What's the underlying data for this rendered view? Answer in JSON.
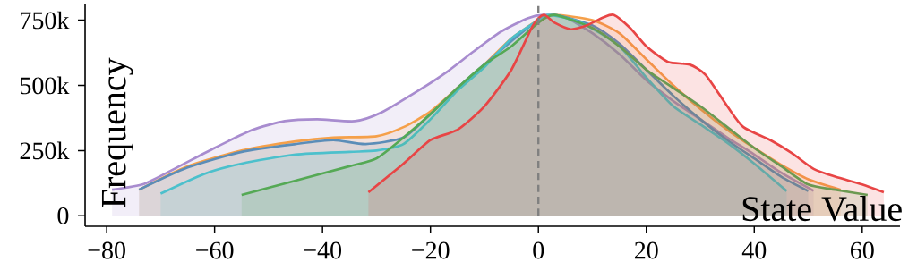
{
  "chart_data": {
    "type": "area",
    "xlabel": "State Value",
    "ylabel": "Frequency",
    "xlim": [
      -84,
      67
    ],
    "ylim": [
      -40000,
      810000
    ],
    "xticks": [
      {
        "value": -80,
        "label": "−80"
      },
      {
        "value": -60,
        "label": "−60"
      },
      {
        "value": -40,
        "label": "−40"
      },
      {
        "value": -20,
        "label": "−20"
      },
      0,
      20,
      40,
      60
    ],
    "yticks": [
      0,
      {
        "value": 250000,
        "label": "250k"
      },
      {
        "value": 500000,
        "label": "500k"
      },
      {
        "value": 750000,
        "label": "750k"
      }
    ],
    "ref_lines": [
      {
        "axis": "x",
        "value": 0,
        "color": "#808080",
        "line_style": "dashed"
      }
    ],
    "series": [
      {
        "color": "#a88ccf",
        "x": [
          -79,
          -73,
          -67,
          -60,
          -53,
          -47,
          -41,
          -34,
          -29,
          -22,
          -17,
          -12,
          -7,
          -2,
          1,
          5,
          10,
          15,
          20,
          25,
          30,
          35,
          40,
          45,
          51
        ],
        "values": [
          100000,
          123000,
          185000,
          260000,
          329000,
          363000,
          370000,
          363000,
          397000,
          483000,
          551000,
          630000,
          705000,
          757000,
          770000,
          760000,
          700000,
          620000,
          520000,
          440000,
          370000,
          300000,
          235000,
          165000,
          96000
        ]
      },
      {
        "color": "#f5a04a",
        "x": [
          -74,
          -65,
          -55,
          -45,
          -38,
          -30,
          -25,
          -20,
          -15,
          -10,
          -5,
          0,
          3,
          10,
          15,
          20,
          25,
          30,
          35,
          40,
          45,
          50,
          56
        ],
        "values": [
          100000,
          190000,
          250000,
          285000,
          300000,
          305000,
          340000,
          400000,
          490000,
          580000,
          680000,
          750000,
          770000,
          750000,
          700000,
          600000,
          500000,
          410000,
          330000,
          260000,
          195000,
          140000,
          100000
        ]
      },
      {
        "color": "#5b8db8",
        "x": [
          -74,
          -65,
          -55,
          -45,
          -38,
          -32,
          -25,
          -20,
          -15,
          -10,
          -5,
          0,
          3,
          10,
          15,
          20,
          25,
          30,
          35,
          40,
          45,
          50
        ],
        "values": [
          100000,
          185000,
          245000,
          275000,
          290000,
          275000,
          300000,
          390000,
          490000,
          580000,
          670000,
          750000,
          770000,
          730000,
          660000,
          560000,
          460000,
          370000,
          290000,
          220000,
          150000,
          95000
        ]
      },
      {
        "color": "#4cc0cc",
        "x": [
          -70,
          -62,
          -55,
          -45,
          -35,
          -30,
          -25,
          -20,
          -15,
          -10,
          -5,
          0,
          2,
          8,
          15,
          20,
          25,
          30,
          35,
          40,
          46
        ],
        "values": [
          85000,
          160000,
          200000,
          235000,
          245000,
          250000,
          275000,
          370000,
          480000,
          570000,
          680000,
          750000,
          770000,
          740000,
          650000,
          530000,
          420000,
          350000,
          280000,
          200000,
          95000
        ]
      },
      {
        "color": "#55a955",
        "x": [
          -55,
          -45,
          -35,
          -30,
          -25,
          -20,
          -15,
          -10,
          -5,
          0,
          3,
          10,
          15,
          20,
          25,
          30,
          35,
          40,
          45,
          50,
          55,
          61
        ],
        "values": [
          80000,
          135000,
          190000,
          220000,
          300000,
          390000,
          490000,
          580000,
          650000,
          740000,
          770000,
          720000,
          650000,
          560000,
          490000,
          420000,
          340000,
          260000,
          190000,
          120000,
          100000,
          80000
        ]
      },
      {
        "color": "#e84545",
        "x": [
          -31.5,
          -25,
          -20,
          -15,
          -10,
          -5,
          -1,
          1,
          3,
          6,
          9,
          12,
          14,
          17,
          20,
          24,
          28,
          31,
          35,
          38,
          43,
          47,
          51,
          55,
          60,
          64
        ],
        "values": [
          90000,
          200000,
          290000,
          330000,
          420000,
          560000,
          730000,
          770000,
          740000,
          715000,
          730000,
          760000,
          770000,
          720000,
          650000,
          590000,
          580000,
          540000,
          420000,
          340000,
          290000,
          240000,
          180000,
          150000,
          120000,
          90000
        ]
      }
    ]
  }
}
